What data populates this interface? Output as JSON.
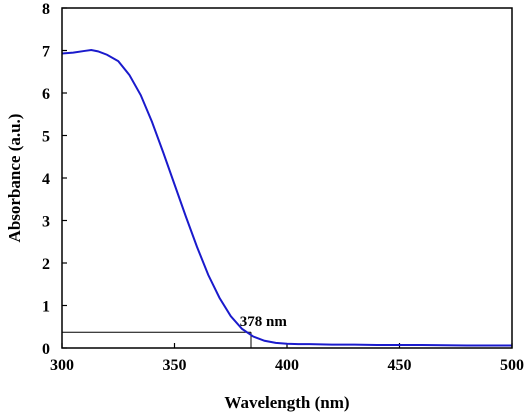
{
  "chart_data": {
    "type": "line",
    "title": "",
    "xlabel": "Wavelength (nm)",
    "ylabel": "Absorbance (a.u.)",
    "xlim": [
      300,
      500
    ],
    "ylim": [
      0,
      8
    ],
    "xticks": [
      300,
      350,
      400,
      450,
      500
    ],
    "yticks": [
      0,
      1,
      2,
      3,
      4,
      5,
      6,
      7,
      8
    ],
    "grid": false,
    "series": [
      {
        "color": "#1a1acc",
        "x": [
          300,
          305,
          310,
          313,
          316,
          320,
          325,
          330,
          335,
          340,
          345,
          350,
          355,
          360,
          365,
          370,
          375,
          380,
          385,
          390,
          395,
          400,
          405,
          410,
          420,
          430,
          440,
          450,
          460,
          480,
          500
        ],
        "y": [
          6.93,
          6.95,
          6.99,
          7.01,
          6.98,
          6.9,
          6.75,
          6.42,
          5.95,
          5.32,
          4.6,
          3.85,
          3.1,
          2.38,
          1.72,
          1.18,
          0.75,
          0.45,
          0.27,
          0.17,
          0.12,
          0.1,
          0.09,
          0.09,
          0.08,
          0.08,
          0.07,
          0.07,
          0.07,
          0.06,
          0.06
        ]
      }
    ],
    "marker_line": {
      "x": 384,
      "y": 0.37
    },
    "annotation": {
      "text": "378 nm",
      "x": 379,
      "y": 0.52
    }
  }
}
